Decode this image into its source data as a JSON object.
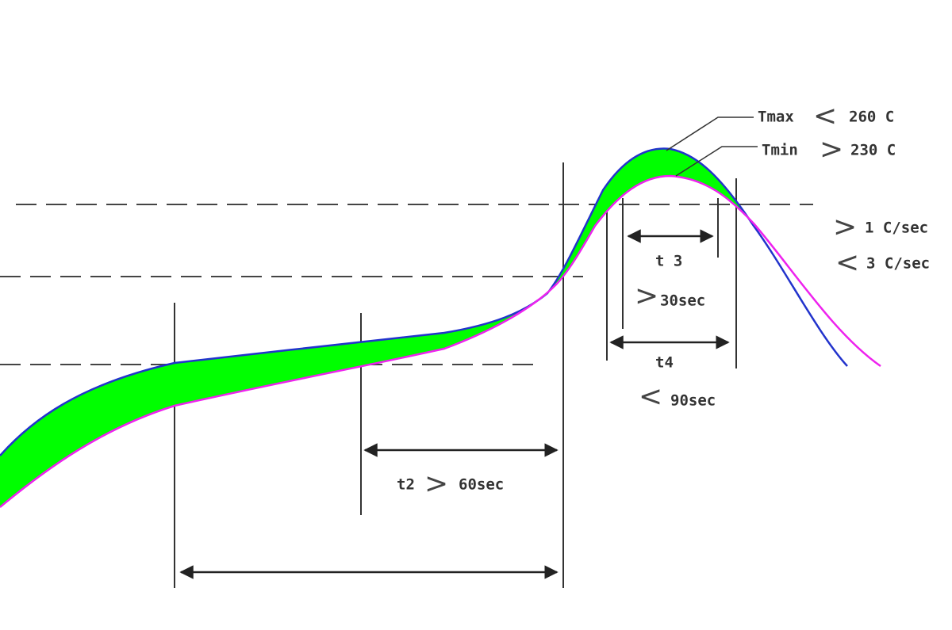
{
  "labels": {
    "tmax": {
      "name": "Tmax",
      "op": "<",
      "value": "260 C"
    },
    "tmin": {
      "name": "Tmin",
      "op": ">",
      "value": "230 C"
    },
    "ramp": {
      "min_op": ">",
      "min": "1 C/sec",
      "max_op": "<",
      "max": "3 C/sec"
    },
    "t3": {
      "name": "t 3",
      "op": ">",
      "value": "30sec"
    },
    "t4": {
      "name": "t4",
      "op": "<",
      "value": "90sec"
    },
    "t2": {
      "name": "t2",
      "op": ">",
      "value": "60sec"
    }
  }
}
